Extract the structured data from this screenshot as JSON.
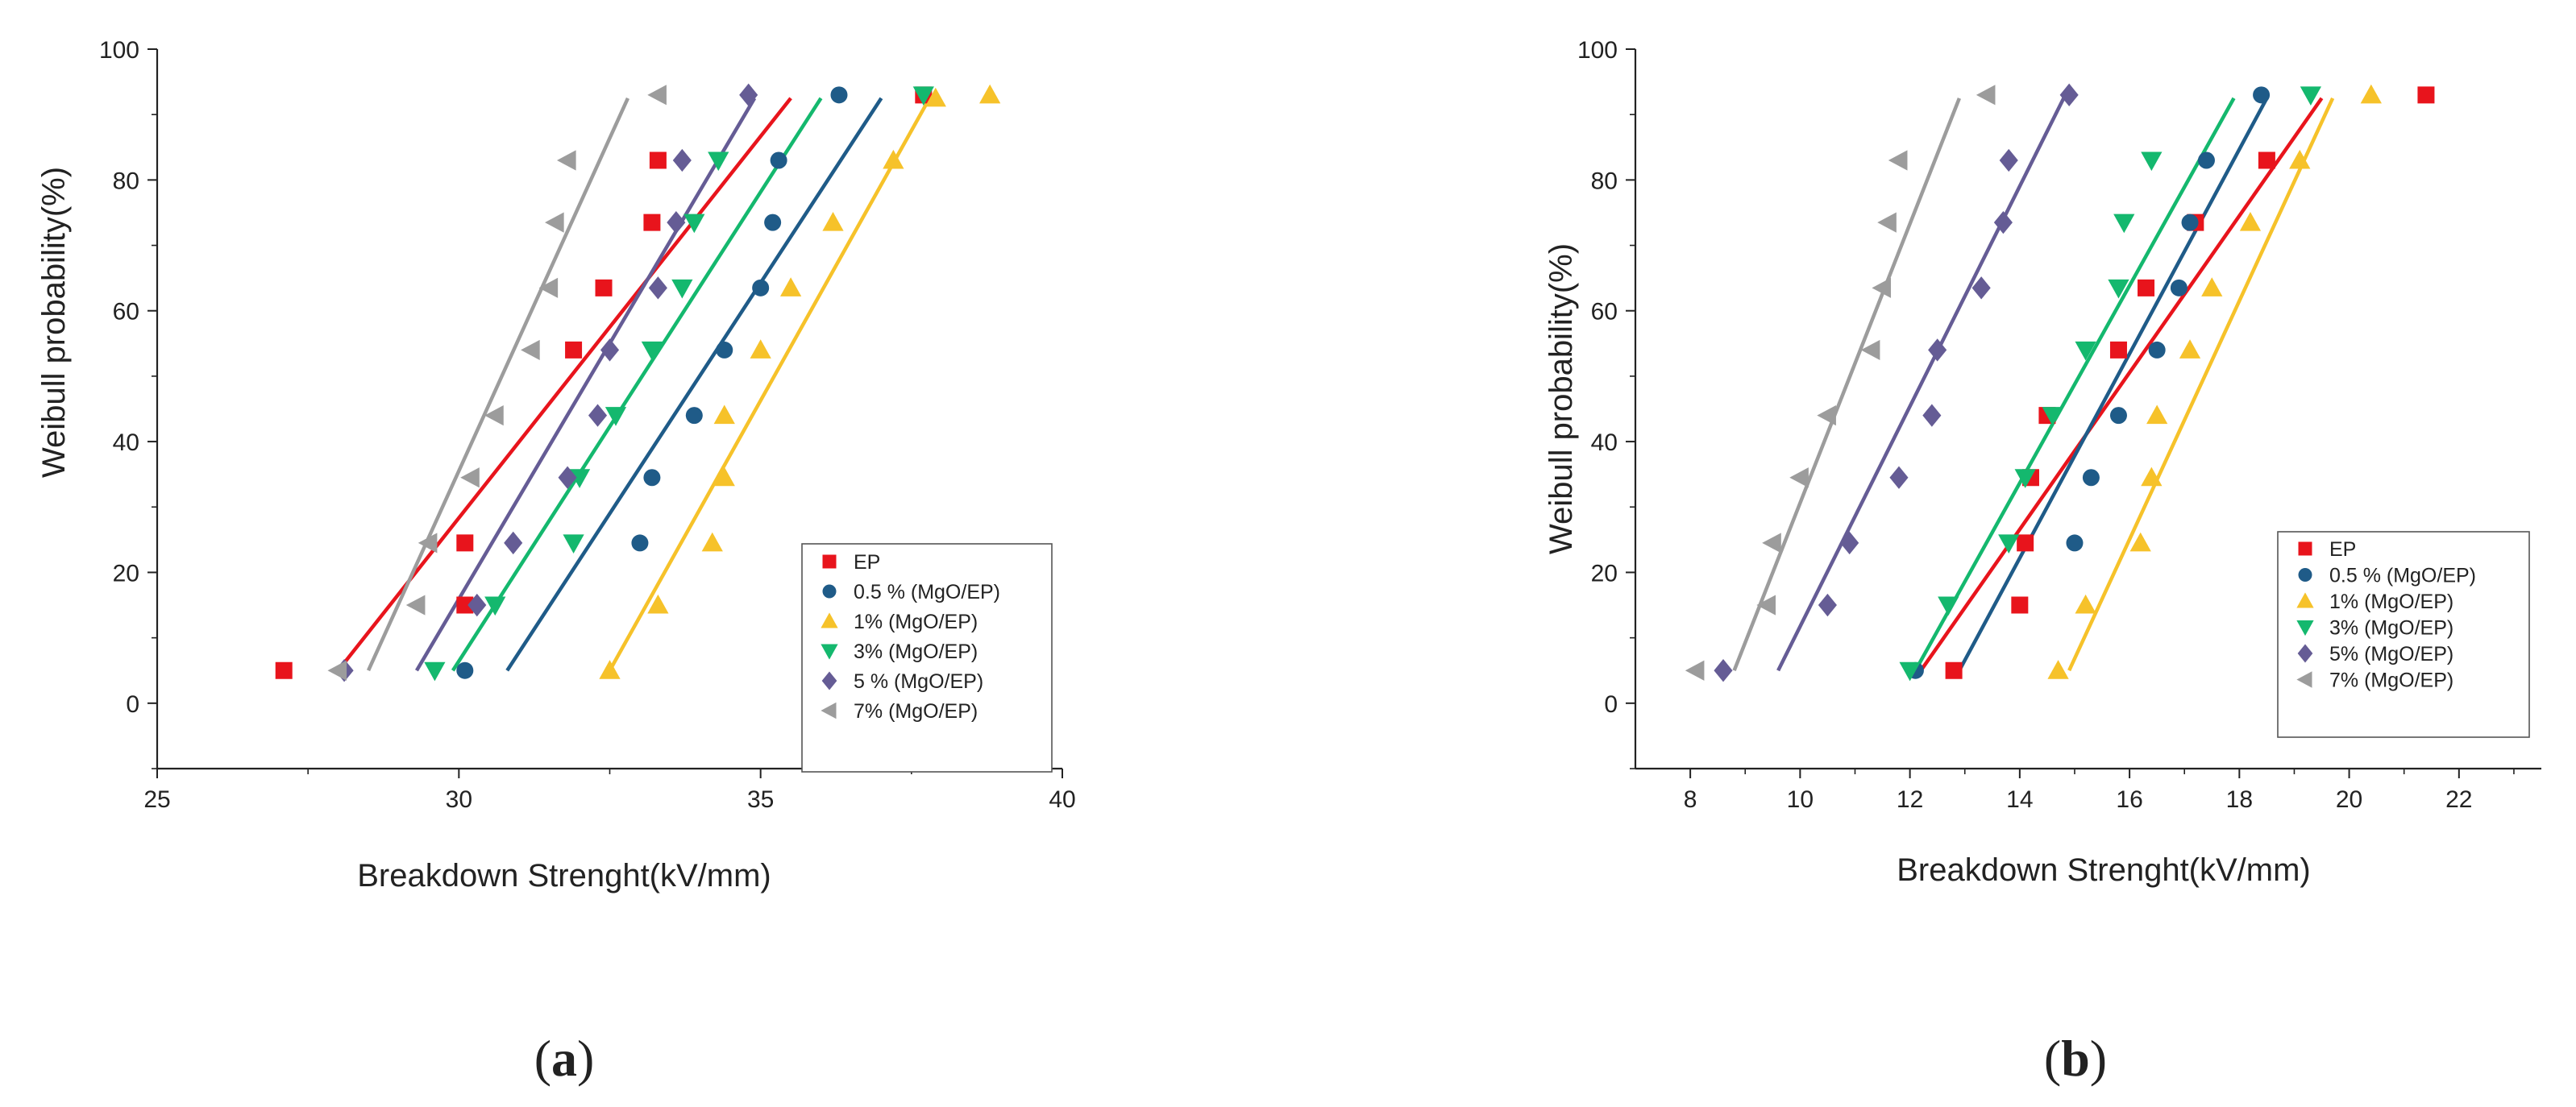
{
  "figure": {
    "panels": [
      {
        "id": "a",
        "label_open": "(",
        "label_letter": "a",
        "label_close": ")"
      },
      {
        "id": "b",
        "label_open": "(",
        "label_letter": "b",
        "label_close": ")"
      }
    ]
  },
  "chart_data": [
    {
      "type": "scatter",
      "panel": "a",
      "xlabel": "Breakdown Strenght(kV/mm)",
      "ylabel": "Weibull probability(%)",
      "xlim": [
        25,
        40
      ],
      "ylim": [
        -10,
        100
      ],
      "xticks": [
        25,
        30,
        35,
        40
      ],
      "yticks": [
        0,
        20,
        40,
        60,
        80,
        100
      ],
      "legend_position": "bottom-right",
      "grid": false,
      "series": [
        {
          "name": "EP",
          "marker": "square",
          "color": "#e8141c",
          "x": [
            27.1,
            30.1,
            30.1,
            31.9,
            32.4,
            33.2,
            33.3,
            37.7
          ],
          "y": [
            5,
            15,
            24.5,
            54,
            63.5,
            73.5,
            83,
            93
          ],
          "fit": [
            [
              28.0,
              5
            ],
            [
              35.5,
              92.5
            ]
          ]
        },
        {
          "name": "0.5 % (MgO/EP)",
          "marker": "circle",
          "color": "#1f5b88",
          "x": [
            30.1,
            33.0,
            33.2,
            33.9,
            34.4,
            35.0,
            35.2,
            35.3,
            36.3
          ],
          "y": [
            5,
            24.5,
            34.5,
            44,
            54,
            63.5,
            73.5,
            83,
            93
          ],
          "fit": [
            [
              30.8,
              5
            ],
            [
              37.0,
              92.5
            ]
          ]
        },
        {
          "name": "1% (MgO/EP)",
          "marker": "triangle-up",
          "color": "#f6c22a",
          "x": [
            32.5,
            33.3,
            34.2,
            34.4,
            34.4,
            35.0,
            35.5,
            36.2,
            37.2,
            37.9,
            38.8
          ],
          "y": [
            5,
            15,
            24.5,
            34.5,
            44,
            54,
            63.5,
            73.5,
            83,
            92.5,
            93
          ],
          "fit": [
            [
              32.5,
              5
            ],
            [
              37.8,
              92.5
            ]
          ]
        },
        {
          "name": "3% (MgO/EP)",
          "marker": "triangle-down",
          "color": "#14b86e",
          "x": [
            29.6,
            30.6,
            31.9,
            32.0,
            32.6,
            33.2,
            33.7,
            33.9,
            34.3,
            37.7
          ],
          "y": [
            5,
            15,
            24.5,
            34.5,
            44,
            54,
            63.5,
            73.5,
            83,
            93
          ],
          "fit": [
            [
              29.9,
              5
            ],
            [
              36.0,
              92.5
            ]
          ]
        },
        {
          "name": "5 % (MgO/EP)",
          "marker": "diamond",
          "color": "#655c95",
          "x": [
            28.1,
            30.3,
            30.9,
            31.8,
            32.3,
            32.5,
            33.3,
            33.6,
            33.7,
            34.8
          ],
          "y": [
            5,
            15,
            24.5,
            34.5,
            44,
            54,
            63.5,
            73.5,
            83,
            93
          ],
          "fit": [
            [
              29.3,
              5
            ],
            [
              34.9,
              92.5
            ]
          ]
        },
        {
          "name": "7% (MgO/EP)",
          "marker": "triangle-left",
          "color": "#9c9c9c",
          "x": [
            28.0,
            29.3,
            29.5,
            30.2,
            30.6,
            31.2,
            31.5,
            31.6,
            31.8,
            33.3
          ],
          "y": [
            5,
            15,
            24.5,
            34.5,
            44,
            54,
            63.5,
            73.5,
            83,
            93
          ],
          "fit": [
            [
              28.5,
              5
            ],
            [
              32.8,
              92.5
            ]
          ]
        }
      ]
    },
    {
      "type": "scatter",
      "panel": "b",
      "xlabel": "Breakdown Strenght(kV/mm)",
      "ylabel": "Weibull probability(%)",
      "xlim": [
        7,
        23.5
      ],
      "ylim": [
        -10,
        100
      ],
      "xticks": [
        8,
        10,
        12,
        14,
        16,
        18,
        20,
        22
      ],
      "yticks": [
        0,
        20,
        40,
        60,
        80,
        100
      ],
      "legend_position": "bottom-right",
      "grid": false,
      "series": [
        {
          "name": "EP",
          "marker": "square",
          "color": "#e8141c",
          "x": [
            12.8,
            14.0,
            14.1,
            14.2,
            14.5,
            15.8,
            16.3,
            17.2,
            18.5,
            21.4
          ],
          "y": [
            5,
            15,
            24.5,
            34.5,
            44,
            54,
            63.5,
            73.5,
            83,
            93
          ],
          "fit": [
            [
              12.2,
              5
            ],
            [
              19.5,
              92.5
            ]
          ]
        },
        {
          "name": "0.5 % (MgO/EP)",
          "marker": "circle",
          "color": "#1f5b88",
          "x": [
            12.1,
            15.0,
            15.3,
            15.8,
            16.5,
            16.9,
            17.1,
            17.4,
            18.4
          ],
          "y": [
            5,
            24.5,
            34.5,
            44,
            54,
            63.5,
            73.5,
            83,
            93
          ],
          "fit": [
            [
              12.9,
              5
            ],
            [
              18.5,
              92.5
            ]
          ]
        },
        {
          "name": "1% (MgO/EP)",
          "marker": "triangle-up",
          "color": "#f6c22a",
          "x": [
            14.7,
            15.2,
            16.2,
            16.4,
            16.5,
            17.1,
            17.5,
            18.2,
            19.1,
            20.4
          ],
          "y": [
            5,
            15,
            24.5,
            34.5,
            44,
            54,
            63.5,
            73.5,
            83,
            93
          ],
          "fit": [
            [
              14.9,
              5
            ],
            [
              19.7,
              92.5
            ]
          ]
        },
        {
          "name": "3% (MgO/EP)",
          "marker": "triangle-down",
          "color": "#14b86e",
          "x": [
            12.0,
            12.7,
            13.8,
            14.1,
            14.6,
            15.2,
            15.8,
            15.9,
            16.4,
            19.3
          ],
          "y": [
            5,
            15,
            24.5,
            34.5,
            44,
            54,
            63.5,
            73.5,
            83,
            93
          ],
          "fit": [
            [
              12.1,
              5
            ],
            [
              17.9,
              92.5
            ]
          ]
        },
        {
          "name": "5% (MgO/EP)",
          "marker": "diamond",
          "color": "#655c95",
          "x": [
            8.6,
            10.5,
            10.9,
            11.8,
            12.4,
            12.5,
            13.3,
            13.7,
            13.8,
            14.9
          ],
          "y": [
            5,
            15,
            24.5,
            34.5,
            44,
            54,
            63.5,
            73.5,
            83,
            93
          ],
          "fit": [
            [
              9.6,
              5
            ],
            [
              14.8,
              92.5
            ]
          ]
        },
        {
          "name": "7% (MgO/EP)",
          "marker": "triangle-left",
          "color": "#9c9c9c",
          "x": [
            8.1,
            9.4,
            9.5,
            10.0,
            10.5,
            11.3,
            11.5,
            11.6,
            11.8,
            13.4
          ],
          "y": [
            5,
            15,
            24.5,
            34.5,
            44,
            54,
            63.5,
            73.5,
            83,
            93
          ],
          "fit": [
            [
              8.8,
              5
            ],
            [
              12.9,
              92.5
            ]
          ]
        }
      ]
    }
  ]
}
